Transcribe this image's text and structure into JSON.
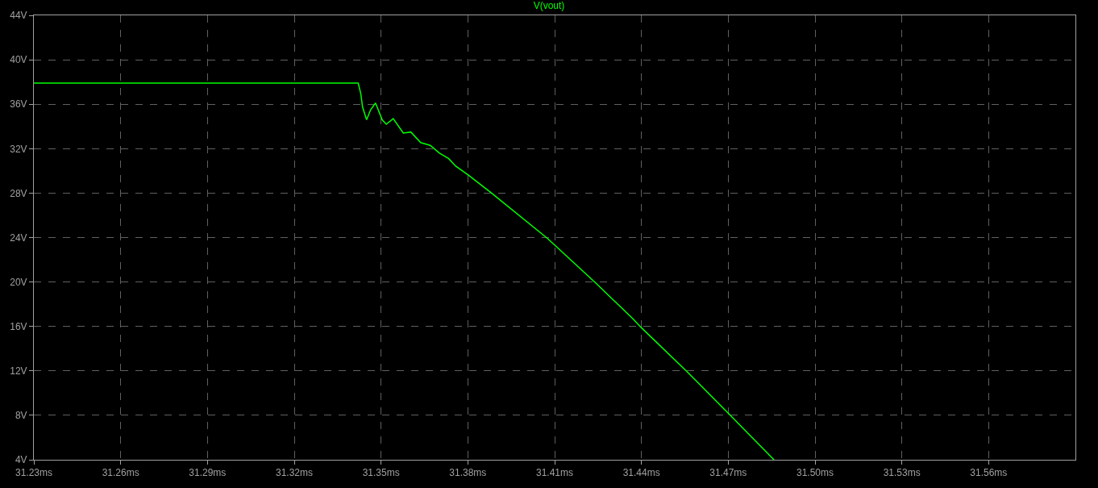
{
  "chart_data": {
    "type": "line",
    "title": "V(vout)",
    "xlim": [
      31.23,
      31.59
    ],
    "xticks": [
      {
        "value": 31.23,
        "label": "31.23ms"
      },
      {
        "value": 31.26,
        "label": "31.26ms"
      },
      {
        "value": 31.29,
        "label": "31.29ms"
      },
      {
        "value": 31.32,
        "label": "31.32ms"
      },
      {
        "value": 31.35,
        "label": "31.35ms"
      },
      {
        "value": 31.38,
        "label": "31.38ms"
      },
      {
        "value": 31.41,
        "label": "31.41ms"
      },
      {
        "value": 31.44,
        "label": "31.44ms"
      },
      {
        "value": 31.47,
        "label": "31.47ms"
      },
      {
        "value": 31.5,
        "label": "31.50ms"
      },
      {
        "value": 31.53,
        "label": "31.53ms"
      },
      {
        "value": 31.56,
        "label": "31.56ms"
      }
    ],
    "ylim": [
      4,
      44
    ],
    "yticks": [
      {
        "value": 4,
        "label": "4V"
      },
      {
        "value": 8,
        "label": "8V"
      },
      {
        "value": 12,
        "label": "12V"
      },
      {
        "value": 16,
        "label": "16V"
      },
      {
        "value": 20,
        "label": "20V"
      },
      {
        "value": 24,
        "label": "24V"
      },
      {
        "value": 28,
        "label": "28V"
      },
      {
        "value": 32,
        "label": "32V"
      },
      {
        "value": 36,
        "label": "36V"
      },
      {
        "value": 40,
        "label": "40V"
      },
      {
        "value": 44,
        "label": "44V"
      }
    ],
    "grid": true,
    "marker": "none",
    "line_style": "solid",
    "series": [
      {
        "color": "#00ff00",
        "x": [
          31.23,
          31.3421,
          31.343,
          31.3436,
          31.345,
          31.3464,
          31.3481,
          31.3504,
          31.3518,
          31.3542,
          31.3577,
          31.3603,
          31.3637,
          31.367,
          31.3702,
          31.3734,
          31.3757,
          31.3803,
          31.3882,
          31.4075,
          31.4241,
          31.437,
          31.4398,
          31.4559,
          31.4711,
          31.4858
        ],
        "values": [
          37.9,
          37.9,
          36.95,
          35.76,
          34.6,
          35.5,
          36.1,
          34.6,
          34.2,
          34.7,
          33.4,
          33.5,
          32.55,
          32.3,
          31.6,
          31.1,
          30.45,
          29.6,
          28.0,
          23.93,
          19.93,
          16.7,
          15.93,
          11.9,
          7.9,
          4.0
        ]
      }
    ]
  }
}
